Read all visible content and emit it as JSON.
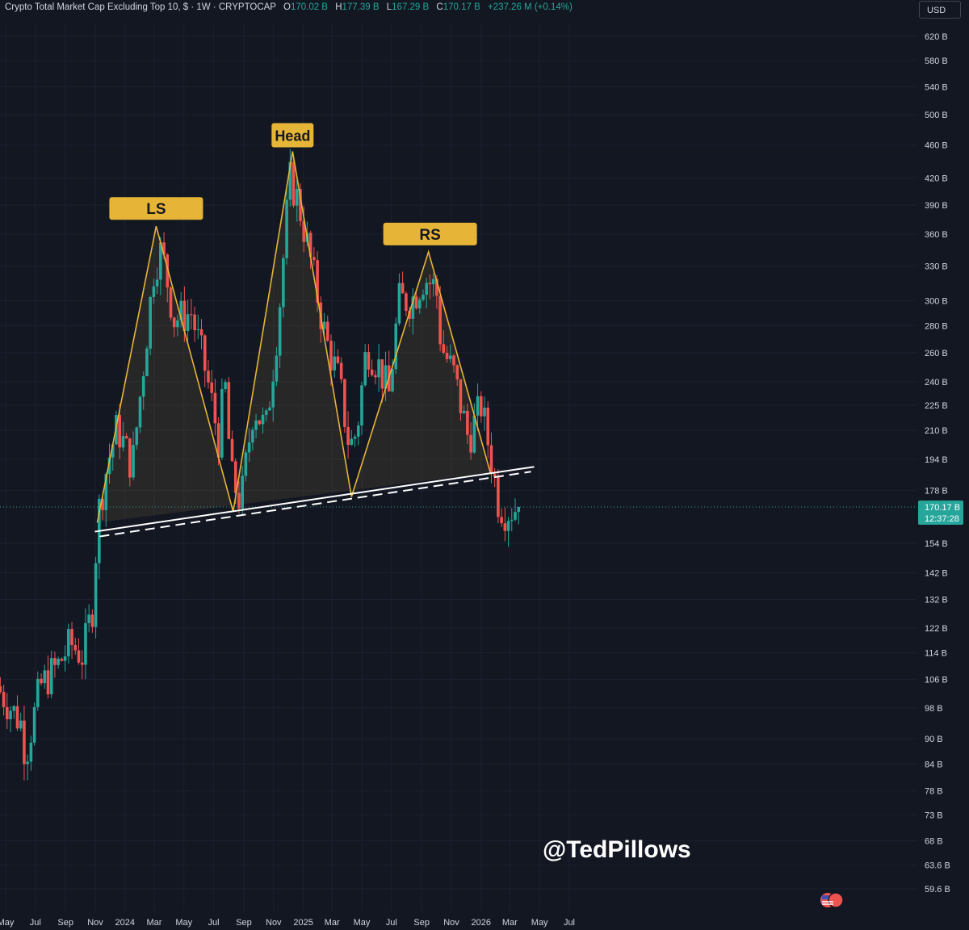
{
  "header": {
    "symbol": "Crypto Total Market Cap Excluding Top 10, $ · 1W · CRYPTOCAP",
    "open_label": "O",
    "open": "170.02 B",
    "high_label": "H",
    "high": "177.39 B",
    "low_label": "L",
    "low": "167.29 B",
    "close_label": "C",
    "close": "170.17 B",
    "change": "+237.26 M (+0.14%)"
  },
  "currency_button": "USD",
  "watermark": "@TedPillows",
  "colors": {
    "up": "#26a69a",
    "down": "#ef5350",
    "pattern": "#e6b436",
    "background": "#131722"
  },
  "chart_data": {
    "type": "candlestick",
    "scale": "log",
    "y_ticks": [
      620,
      580,
      540,
      500,
      460,
      420,
      390,
      360,
      330,
      300,
      280,
      260,
      240,
      225,
      210,
      194,
      178,
      154,
      142,
      132,
      122,
      114,
      106,
      98,
      90,
      84,
      78,
      73,
      68,
      63.6,
      59.6
    ],
    "y_tick_labels": [
      "620 B",
      "580 B",
      "540 B",
      "500 B",
      "460 B",
      "420 B",
      "390 B",
      "360 B",
      "330 B",
      "300 B",
      "280 B",
      "260 B",
      "240 B",
      "225 B",
      "210 B",
      "194 B",
      "178 B",
      "154 B",
      "142 B",
      "132 B",
      "122 B",
      "114 B",
      "106 B",
      "98 B",
      "90 B",
      "84 B",
      "78 B",
      "73 B",
      "68 B",
      "63.6 B",
      "59.6 B"
    ],
    "x_ticks": [
      "May",
      "Jul",
      "Sep",
      "Nov",
      "2024",
      "Mar",
      "May",
      "Jul",
      "Sep",
      "Nov",
      "2025",
      "Mar",
      "May",
      "Jul",
      "Sep",
      "Nov",
      "2026",
      "Mar",
      "May",
      "Jul"
    ],
    "x_tick_dates": [
      "2023-05-01",
      "2023-07-01",
      "2023-09-01",
      "2023-11-01",
      "2024-01-01",
      "2024-03-01",
      "2024-05-01",
      "2024-07-01",
      "2024-09-01",
      "2024-11-01",
      "2025-01-01",
      "2025-03-01",
      "2025-05-01",
      "2025-07-01",
      "2025-09-01",
      "2025-11-01",
      "2026-01-01",
      "2026-03-01",
      "2026-05-01",
      "2026-07-01"
    ],
    "price_label": "170.17 B",
    "countdown": "12:37:28",
    "current_price": 170.17,
    "pattern_labels": [
      "LS",
      "Head",
      "RS"
    ],
    "pattern_points": [
      {
        "date": "2023-11-05",
        "value": 163
      },
      {
        "date": "2024-03-05",
        "value": 368,
        "label": "LS"
      },
      {
        "date": "2024-08-10",
        "value": 168
      },
      {
        "date": "2024-12-10",
        "value": 452,
        "label": "Head"
      },
      {
        "date": "2025-04-10",
        "value": 175
      },
      {
        "date": "2025-09-15",
        "value": 343,
        "label": "RS"
      },
      {
        "date": "2026-01-20",
        "value": 187
      }
    ],
    "neckline": {
      "start": {
        "date": "2023-10-31",
        "value": 159
      },
      "end": {
        "date": "2026-04-20",
        "value": 190
      }
    },
    "anchors": [
      {
        "date": "2023-04-17",
        "value": 104
      },
      {
        "date": "2023-06-05",
        "value": 94
      },
      {
        "date": "2023-06-15",
        "value": 86
      },
      {
        "date": "2023-07-15",
        "value": 104
      },
      {
        "date": "2023-08-20",
        "value": 110
      },
      {
        "date": "2023-09-15",
        "value": 117
      },
      {
        "date": "2023-10-10",
        "value": 113
      },
      {
        "date": "2023-10-31",
        "value": 130
      },
      {
        "date": "2023-11-10",
        "value": 166
      },
      {
        "date": "2023-12-01",
        "value": 193
      },
      {
        "date": "2023-12-20",
        "value": 212
      },
      {
        "date": "2024-01-20",
        "value": 190
      },
      {
        "date": "2024-02-10",
        "value": 245
      },
      {
        "date": "2024-03-05",
        "value": 330
      },
      {
        "date": "2024-03-20",
        "value": 345
      },
      {
        "date": "2024-04-15",
        "value": 285
      },
      {
        "date": "2024-05-20",
        "value": 290
      },
      {
        "date": "2024-06-20",
        "value": 245
      },
      {
        "date": "2024-07-15",
        "value": 205
      },
      {
        "date": "2024-07-28",
        "value": 240
      },
      {
        "date": "2024-08-10",
        "value": 185
      },
      {
        "date": "2024-08-30",
        "value": 172
      },
      {
        "date": "2024-09-25",
        "value": 225
      },
      {
        "date": "2024-10-20",
        "value": 210
      },
      {
        "date": "2024-11-15",
        "value": 285
      },
      {
        "date": "2024-12-08",
        "value": 420
      },
      {
        "date": "2024-12-25",
        "value": 395
      },
      {
        "date": "2025-01-20",
        "value": 335
      },
      {
        "date": "2025-02-20",
        "value": 270
      },
      {
        "date": "2025-03-20",
        "value": 240
      },
      {
        "date": "2025-04-10",
        "value": 200
      },
      {
        "date": "2025-04-25",
        "value": 210
      },
      {
        "date": "2025-05-15",
        "value": 265
      },
      {
        "date": "2025-06-10",
        "value": 250
      },
      {
        "date": "2025-06-30",
        "value": 232
      },
      {
        "date": "2025-07-20",
        "value": 300
      },
      {
        "date": "2025-08-15",
        "value": 300
      },
      {
        "date": "2025-09-10",
        "value": 320
      },
      {
        "date": "2025-10-05",
        "value": 310
      },
      {
        "date": "2025-10-15",
        "value": 265
      },
      {
        "date": "2025-11-10",
        "value": 245
      },
      {
        "date": "2025-12-10",
        "value": 205
      },
      {
        "date": "2026-01-05",
        "value": 225
      },
      {
        "date": "2026-01-25",
        "value": 195
      },
      {
        "date": "2026-02-10",
        "value": 172
      },
      {
        "date": "2026-02-25",
        "value": 168
      },
      {
        "date": "2026-03-20",
        "value": 170.17
      }
    ]
  }
}
